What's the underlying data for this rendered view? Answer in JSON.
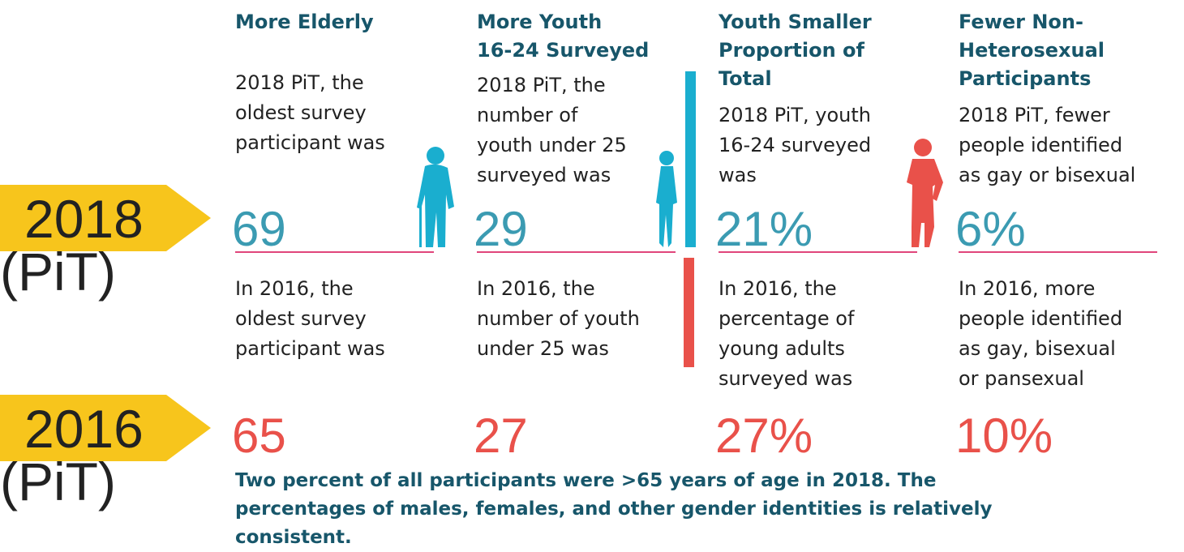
{
  "years": [
    {
      "year": "2018",
      "label": "(PiT)"
    },
    {
      "year": "2016",
      "label": "(PiT)"
    }
  ],
  "columns": [
    {
      "heading": [
        "More Elderly"
      ],
      "desc_2018": [
        "2018 PiT, the",
        "oldest survey",
        "participant was"
      ],
      "value_2018": "69",
      "desc_2016": [
        "In 2016, the",
        "oldest survey",
        "participant was"
      ],
      "value_2016": "65"
    },
    {
      "heading": [
        "More Youth",
        "16-24 Surveyed"
      ],
      "desc_2018": [
        "2018 PiT, the",
        "number of",
        "youth under 25",
        "surveyed was"
      ],
      "value_2018": "29",
      "desc_2016": [
        "In 2016, the",
        "number of youth",
        "under 25 was"
      ],
      "value_2016": "27"
    },
    {
      "heading": [
        "Youth Smaller",
        "Proportion of",
        "Total"
      ],
      "desc_2018": [
        "2018 PiT, youth",
        "16-24 surveyed",
        "was"
      ],
      "value_2018": "21%",
      "desc_2016": [
        "In 2016, the",
        "percentage of",
        "young adults",
        "surveyed was"
      ],
      "value_2016": "27%"
    },
    {
      "heading": [
        "Fewer Non-",
        "Heterosexual",
        "Participants"
      ],
      "desc_2018": [
        "2018 PiT, fewer",
        "people identified",
        "as gay or bisexual"
      ],
      "value_2018": "6%",
      "desc_2016": [
        "In 2016, more",
        "people identified",
        "as gay, bisexual",
        "or pansexual"
      ],
      "value_2016": "10%"
    }
  ],
  "footnote": [
    "Two percent of all participants were >65 years of age in 2018.  The",
    "percentages of males, females, and other gender identities is relatively",
    "consistent."
  ]
}
